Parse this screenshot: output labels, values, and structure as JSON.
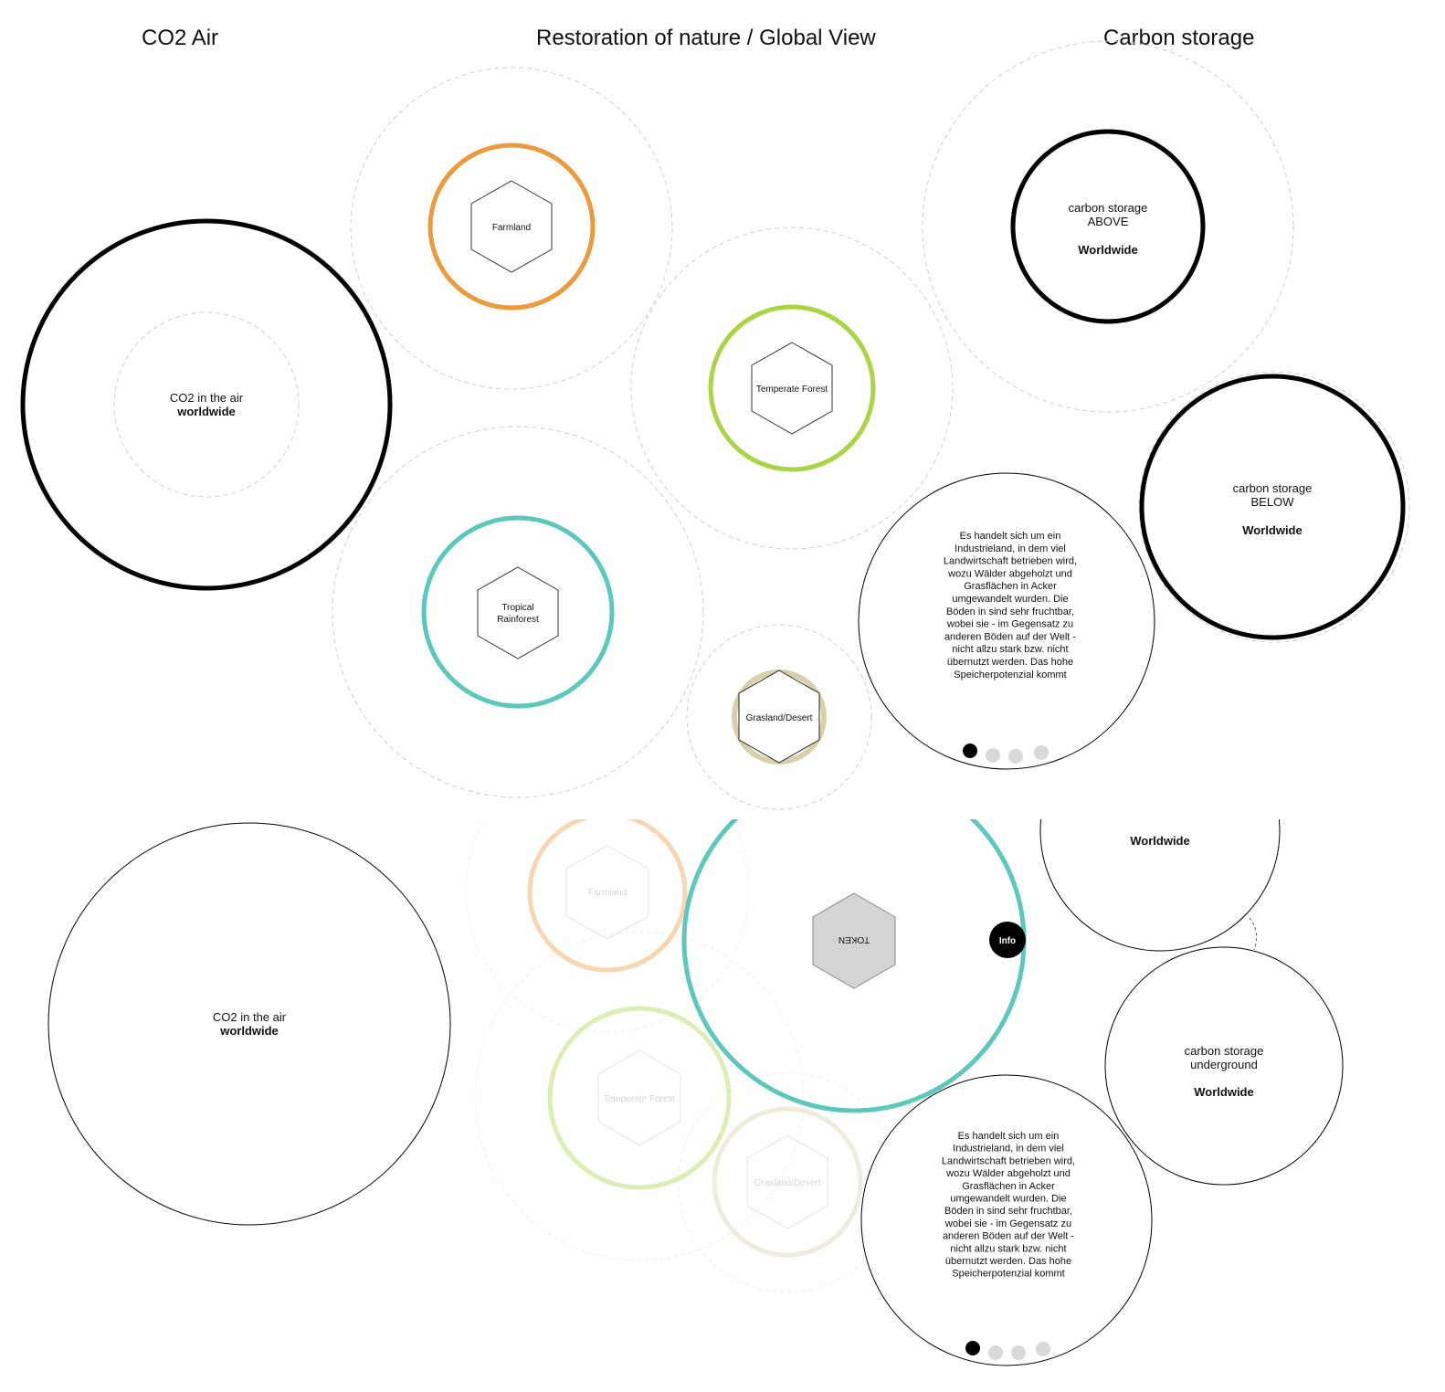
{
  "headers": {
    "co2_air": "CO2 Air",
    "restoration": "Restoration of nature / Global View",
    "carbon_storage": "Carbon storage"
  },
  "colors": {
    "farmland": "#ec9a3c",
    "temperate_forest": "#a9d543",
    "tropical_rainforest": "#5bc8bd",
    "grasland_desert": "#d8d0a8",
    "dark": "#000000",
    "dashed": "#cfcfcf",
    "token_fill": "#d4d4d4"
  },
  "top": {
    "co2": {
      "line1": "CO2 in the air",
      "line2": "worldwide"
    },
    "biomes": {
      "farmland": "Farmland",
      "temperate_forest": "Temperate Forest",
      "tropical_1": "Tropical",
      "tropical_2": "Rainforest",
      "grasland": "Grasland/Desert"
    },
    "above": {
      "line1": "carbon storage",
      "line2": "ABOVE",
      "line3": "Worldwide"
    },
    "below": {
      "line1": "carbon storage",
      "line2": "BELOW",
      "line3": "Worldwide"
    },
    "info_text": [
      "Es handelt sich um ein",
      "Industrieland, in dem viel",
      "Landwirtschaft betrieben wird,",
      "wozu Wälder abgeholzt und",
      "Grasflächen in Acker",
      "umgewandelt wurden. Die",
      "Böden in sind sehr fruchtbar,",
      "wobei sie - im Gegensatz zu",
      "anderen Böden auf der Welt -",
      "nicht allzu stark bzw. nicht",
      "übernutzt werden. Das hohe",
      "Speicherpotenzial kommt"
    ]
  },
  "bottom": {
    "co2": {
      "line1": "CO2 in the air",
      "line2": "worldwide"
    },
    "faded": {
      "farmland": "Farmland",
      "temperate_forest": "Temperate Forest",
      "grasland": "Grasland/Desert"
    },
    "token": "TOKEN",
    "info_button": "Info",
    "worldwide_top": "Worldwide",
    "underground": {
      "line1": "carbon storage",
      "line2": "underground",
      "line3": "Worldwide"
    },
    "info_text": [
      "Es handelt sich um ein",
      "Industrieland, in dem viel",
      "Landwirtschaft betrieben wird,",
      "wozu Wälder abgeholzt und",
      "Grasflächen in Acker",
      "umgewandelt wurden. Die",
      "Böden in sind sehr fruchtbar,",
      "wobei sie - im Gegensatz zu",
      "anderen Böden auf der Welt -",
      "nicht allzu stark bzw. nicht",
      "übernutzt werden. Das hohe",
      "Speicherpotenzial kommt"
    ]
  }
}
